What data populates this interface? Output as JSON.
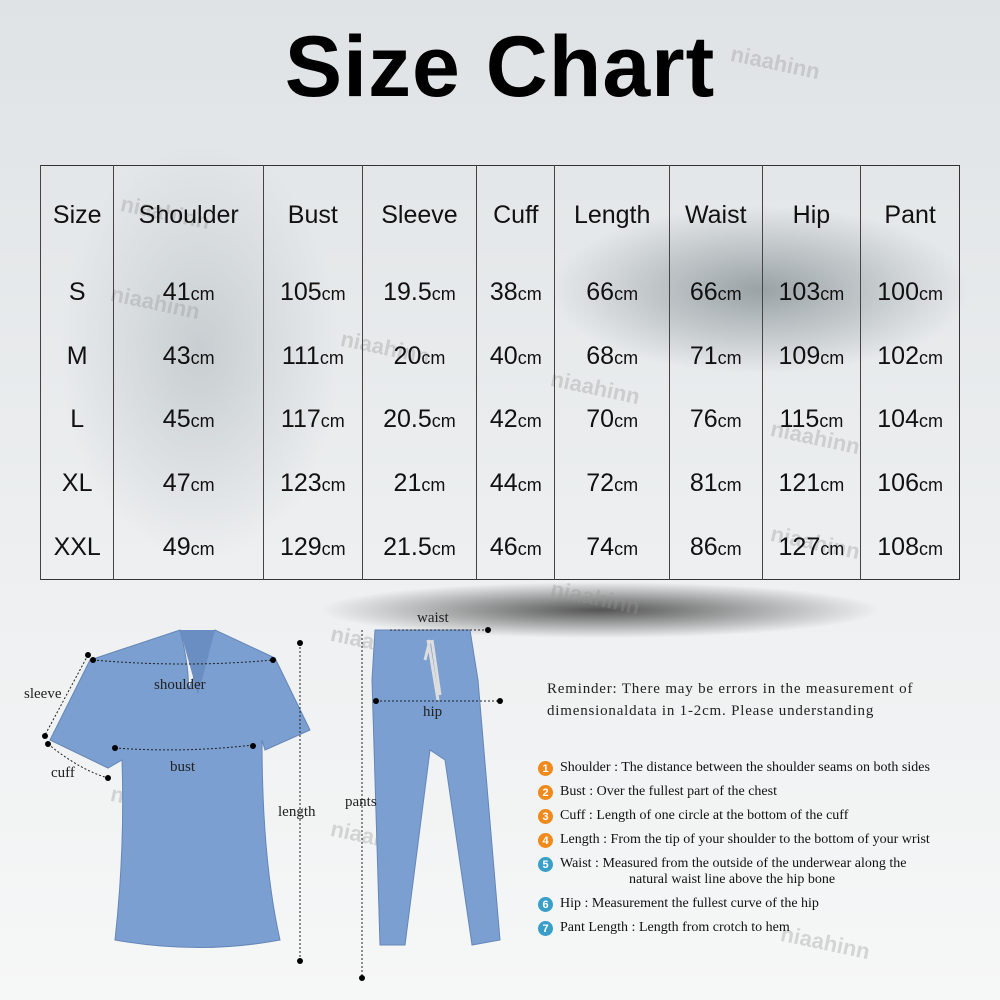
{
  "title": "Size Chart",
  "watermark": "niaahinn",
  "table": {
    "headers": [
      "Size",
      "Shoulder",
      "Bust",
      "Sleeve",
      "Cuff",
      "Length",
      "Waist",
      "Hip",
      "Pant"
    ],
    "unit": "cm",
    "rows": [
      [
        "S",
        "41",
        "105",
        "19.5",
        "38",
        "66",
        "66",
        "103",
        "100"
      ],
      [
        "M",
        "43",
        "111",
        "20",
        "40",
        "68",
        "71",
        "109",
        "102"
      ],
      [
        "L",
        "45",
        "117",
        "20.5",
        "42",
        "70",
        "76",
        "115",
        "104"
      ],
      [
        "XL",
        "47",
        "123",
        "21",
        "44",
        "72",
        "81",
        "121",
        "106"
      ],
      [
        "XXL",
        "49",
        "129",
        "21.5",
        "46",
        "74",
        "86",
        "127",
        "108"
      ]
    ]
  },
  "diagram": {
    "sleeve": "sleeve",
    "shoulder": "shoulder",
    "cuff": "cuff",
    "bust": "bust",
    "length": "length",
    "waist": "waist",
    "hip": "hip",
    "pants": "pants",
    "garment_color": "#7b9fd0"
  },
  "reminder": "Reminder: There may be errors in the measurement of dimensionaldata in 1-2cm. Please understanding",
  "definitions": [
    {
      "n": "1",
      "color": "#f08a1c",
      "term": "Shoulder",
      "text": "The distance between the shoulder seams on both sides"
    },
    {
      "n": "2",
      "color": "#f08a1c",
      "term": "Bust",
      "text": "Over the fullest part of the chest"
    },
    {
      "n": "3",
      "color": "#f08a1c",
      "term": "Cuff",
      "text": "Length of one circle at the bottom of the cuff"
    },
    {
      "n": "4",
      "color": "#f08a1c",
      "term": "Length",
      "text": "From the tip of your shoulder to the bottom of your wrist"
    },
    {
      "n": "5",
      "color": "#3a9fc8",
      "term": "Waist",
      "text": "Measured from the outside of the underwear along the",
      "cont": "natural waist line above the hip bone"
    },
    {
      "n": "6",
      "color": "#3a9fc8",
      "term": "Hip",
      "text": "Measurement the fullest curve of the hip"
    },
    {
      "n": "7",
      "color": "#3a9fc8",
      "term": "Pant Length",
      "text": "Length from crotch to hem"
    }
  ]
}
